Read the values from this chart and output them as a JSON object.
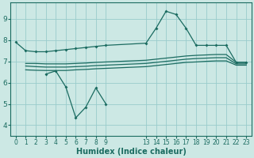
{
  "bg_color": "#cce8e4",
  "grid_color": "#99cccc",
  "line_color": "#1a6b60",
  "xlabel": "Humidex (Indice chaleur)",
  "xlim": [
    -0.5,
    23.5
  ],
  "ylim": [
    3.5,
    9.75
  ],
  "yticks": [
    4,
    5,
    6,
    7,
    8,
    9
  ],
  "xtick_positions": [
    0,
    1,
    2,
    3,
    4,
    5,
    6,
    7,
    8,
    9,
    13,
    14,
    15,
    16,
    17,
    18,
    19,
    20,
    21,
    22,
    23
  ],
  "xtick_labels": [
    "0",
    "1",
    "2",
    "3",
    "4",
    "5",
    "6",
    "7",
    "8",
    "9",
    "13",
    "14",
    "15",
    "16",
    "17",
    "18",
    "19",
    "20",
    "21",
    "22",
    "23"
  ],
  "line1_x": [
    0,
    1,
    2,
    3,
    4,
    5,
    6,
    7,
    8,
    9,
    13,
    14,
    15,
    16,
    17,
    18,
    19,
    20,
    21,
    22,
    23
  ],
  "line1_y": [
    7.9,
    7.5,
    7.45,
    7.45,
    7.5,
    7.55,
    7.6,
    7.65,
    7.7,
    7.75,
    7.85,
    8.55,
    9.35,
    9.2,
    8.55,
    7.75,
    7.75,
    7.75,
    7.75,
    6.95,
    6.95
  ],
  "line2_x": [
    1,
    2,
    3,
    4,
    5,
    6,
    7,
    8,
    9,
    13,
    14,
    15,
    16,
    17,
    18,
    19,
    20,
    21,
    22,
    23
  ],
  "line2_y": [
    6.9,
    6.9,
    6.88,
    6.88,
    6.88,
    6.9,
    6.92,
    6.95,
    6.97,
    7.05,
    7.1,
    7.15,
    7.2,
    7.25,
    7.28,
    7.3,
    7.32,
    7.32,
    6.95,
    6.95
  ],
  "line3_x": [
    1,
    2,
    3,
    4,
    5,
    6,
    7,
    8,
    9,
    13,
    14,
    15,
    16,
    17,
    18,
    19,
    20,
    21,
    22,
    23
  ],
  "line3_y": [
    6.78,
    6.75,
    6.73,
    6.73,
    6.73,
    6.75,
    6.77,
    6.8,
    6.82,
    6.9,
    6.95,
    7.0,
    7.05,
    7.1,
    7.13,
    7.15,
    7.17,
    7.17,
    6.88,
    6.88
  ],
  "line4_x": [
    1,
    2,
    3,
    4,
    5,
    6,
    7,
    8,
    9,
    13,
    14,
    15,
    16,
    17,
    18,
    19,
    20,
    21,
    22,
    23
  ],
  "line4_y": [
    6.6,
    6.58,
    6.57,
    6.57,
    6.57,
    6.6,
    6.62,
    6.65,
    6.67,
    6.75,
    6.8,
    6.85,
    6.9,
    6.95,
    6.97,
    7.0,
    7.02,
    7.02,
    6.82,
    6.82
  ],
  "line5_x": [
    3,
    4,
    5,
    6,
    7,
    8,
    9
  ],
  "line5_y": [
    6.4,
    6.55,
    5.8,
    4.35,
    4.85,
    5.75,
    5.0
  ]
}
